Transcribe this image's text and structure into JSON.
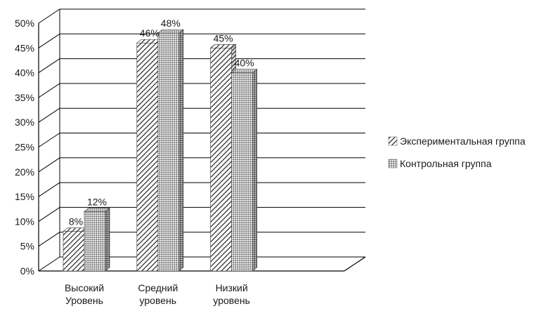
{
  "chart_data": {
    "type": "bar",
    "categories": [
      [
        "Высокий",
        "Уровень"
      ],
      [
        "Средний",
        "уровень"
      ],
      [
        "Низкий",
        "уровень"
      ]
    ],
    "series": [
      {
        "name": "Экспериментальная группа",
        "values": [
          8,
          46,
          45
        ],
        "labels": [
          "8%",
          "46%",
          "45%"
        ],
        "pattern": "diagonal-hatch"
      },
      {
        "name": "Контрольная группа",
        "values": [
          12,
          48,
          40
        ],
        "labels": [
          "12%",
          "48%",
          "40%"
        ],
        "pattern": "dot-fill"
      }
    ],
    "y_ticks": [
      "0%",
      "5%",
      "10%",
      "15%",
      "20%",
      "25%",
      "30%",
      "35%",
      "40%",
      "45%",
      "50%"
    ],
    "ylim": [
      0,
      50
    ],
    "grid": true,
    "legend_position": "right",
    "style": "3d"
  }
}
